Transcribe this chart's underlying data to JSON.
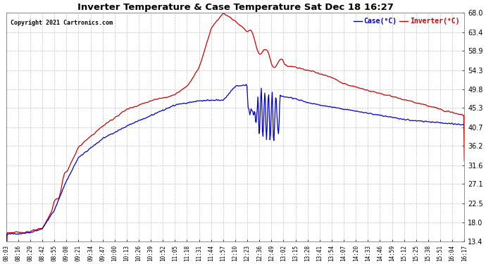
{
  "title": "Inverter Temperature & Case Temperature Sat Dec 18 16:27",
  "copyright": "Copyright 2021 Cartronics.com",
  "legend_case": "Case(°C)",
  "legend_inverter": "Inverter(°C)",
  "yticks": [
    13.4,
    18.0,
    22.5,
    27.1,
    31.6,
    36.2,
    40.7,
    45.3,
    49.8,
    54.3,
    58.9,
    63.4,
    68.0
  ],
  "ylim": [
    13.4,
    68.0
  ],
  "xtick_labels": [
    "08:03",
    "08:16",
    "08:29",
    "08:42",
    "08:55",
    "09:08",
    "09:21",
    "09:34",
    "09:47",
    "10:00",
    "10:13",
    "10:26",
    "10:39",
    "10:52",
    "11:05",
    "11:18",
    "11:31",
    "11:44",
    "11:57",
    "12:10",
    "12:23",
    "12:36",
    "12:49",
    "13:02",
    "13:15",
    "13:28",
    "13:41",
    "13:54",
    "14:07",
    "14:20",
    "14:33",
    "14:46",
    "14:59",
    "15:12",
    "15:25",
    "15:38",
    "15:51",
    "16:04",
    "16:17"
  ],
  "background_color": "#ffffff",
  "grid_color": "#aaaaaa",
  "case_color": "#0000cc",
  "inverter_color": "#cc0000",
  "title_color": "#000000",
  "copyright_color": "#000000",
  "legend_case_color": "#0000cc",
  "legend_inverter_color": "#cc0000"
}
